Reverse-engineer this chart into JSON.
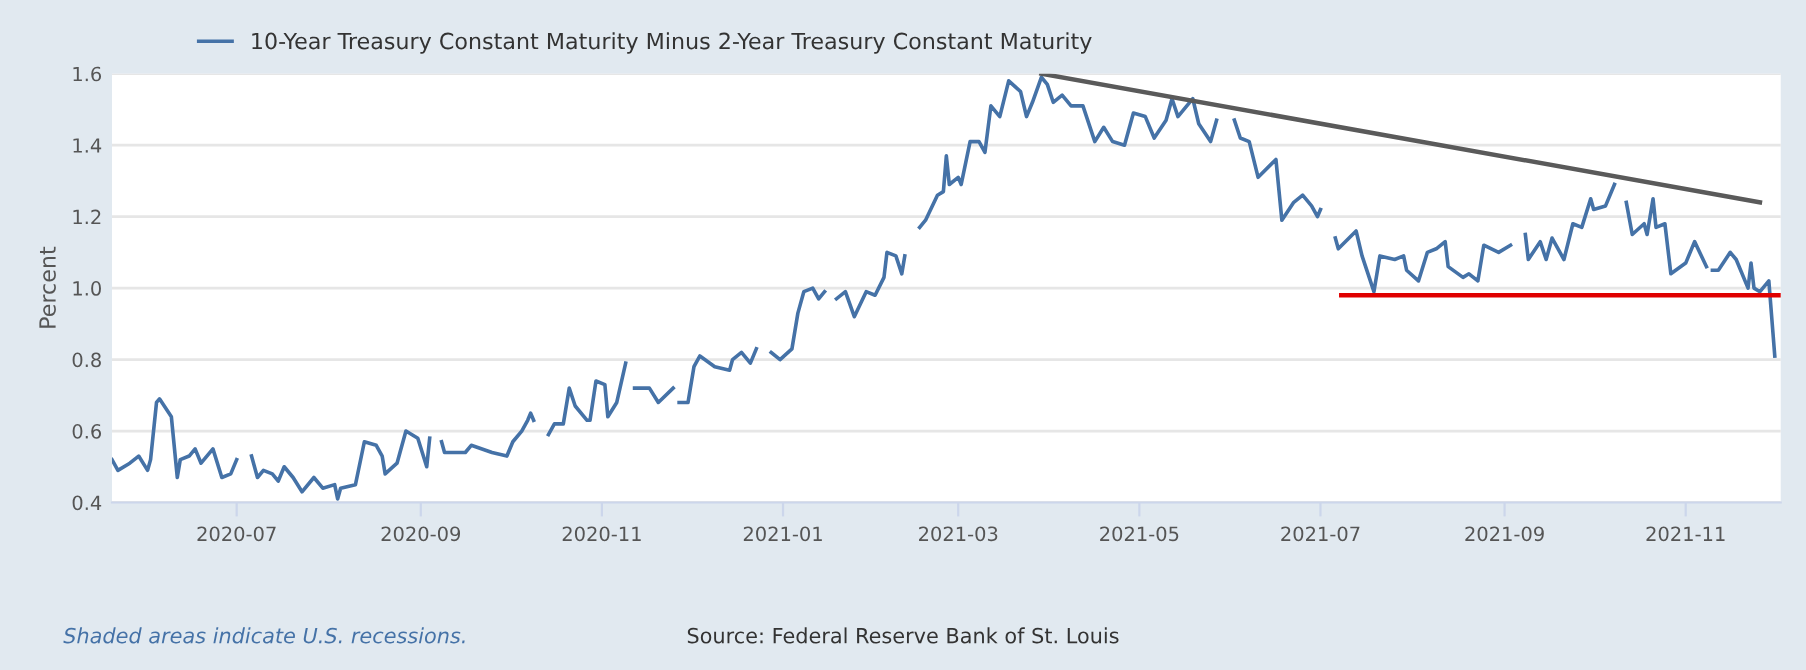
{
  "chart_data": {
    "type": "line",
    "ylabel": "Percent",
    "xlim": [
      "2020-05-20",
      "2021-12-03"
    ],
    "xticks": [
      {
        "value": "2020-07-01",
        "label": "2020-07"
      },
      {
        "value": "2020-09-01",
        "label": "2020-09"
      },
      {
        "value": "2020-11-01",
        "label": "2020-11"
      },
      {
        "value": "2021-01-01",
        "label": "2021-01"
      },
      {
        "value": "2021-03-01",
        "label": "2021-03"
      },
      {
        "value": "2021-05-01",
        "label": "2021-05"
      },
      {
        "value": "2021-07-01",
        "label": "2021-07"
      },
      {
        "value": "2021-09-01",
        "label": "2021-09"
      },
      {
        "value": "2021-11-01",
        "label": "2021-11"
      }
    ],
    "ylim": [
      0.4,
      1.6
    ],
    "yticks": [
      0.4,
      0.6,
      0.8,
      {
        "value": 1,
        "label": "1.0"
      },
      1.2,
      1.4,
      1.6
    ],
    "grid": "y",
    "legend": "top left",
    "annotations": [
      "Shaded areas indicate U.S. recessions.",
      "Source: Federal Reserve Bank of St. Louis"
    ],
    "series": [
      {
        "name": "10-Year Treasury Constant Maturity Minus 2-Year Treasury Constant Maturity",
        "color": "#4572a7",
        "x": [
          "2020-05-20",
          "2020-05-22",
          "2020-05-26",
          "2020-05-29",
          "2020-06-01",
          "2020-06-02",
          "2020-06-04",
          "2020-06-05",
          "2020-06-09",
          "2020-06-11",
          "2020-06-12",
          "2020-06-15",
          "2020-06-17",
          "2020-06-19",
          "2020-06-23",
          "2020-06-26",
          "2020-06-29",
          "2020-07-01",
          "2020-07-03",
          "2020-07-06",
          "2020-07-08",
          "2020-07-10",
          "2020-07-13",
          "2020-07-15",
          "2020-07-17",
          "2020-07-20",
          "2020-07-23",
          "2020-07-27",
          "2020-07-30",
          "2020-08-03",
          "2020-08-04",
          "2020-08-05",
          "2020-08-10",
          "2020-08-13",
          "2020-08-17",
          "2020-08-19",
          "2020-08-20",
          "2020-08-24",
          "2020-08-25",
          "2020-08-27",
          "2020-08-31",
          "2020-09-03",
          "2020-09-04",
          "2020-09-07",
          "2020-09-08",
          "2020-09-09",
          "2020-09-16",
          "2020-09-18",
          "2020-09-25",
          "2020-09-30",
          "2020-10-02",
          "2020-10-05",
          "2020-10-07",
          "2020-10-08",
          "2020-10-09",
          "2020-10-12",
          "2020-10-14",
          "2020-10-16",
          "2020-10-19",
          "2020-10-21",
          "2020-10-23",
          "2020-10-27",
          "2020-10-28",
          "2020-10-30",
          "2020-11-02",
          "2020-11-03",
          "2020-11-06",
          "2020-11-09",
          "2020-11-11",
          "2020-11-12",
          "2020-11-17",
          "2020-11-20",
          "2020-11-25",
          "2020-11-26",
          "2020-11-27",
          "2020-11-30",
          "2020-12-02",
          "2020-12-04",
          "2020-12-09",
          "2020-12-14",
          "2020-12-15",
          "2020-12-18",
          "2020-12-21",
          "2020-12-23",
          "2020-12-25",
          "2020-12-28",
          "2020-12-31",
          "2021-01-04",
          "2021-01-06",
          "2021-01-08",
          "2021-01-11",
          "2021-01-13",
          "2021-01-15",
          "2021-01-18",
          "2021-01-19",
          "2021-01-22",
          "2021-01-25",
          "2021-01-29",
          "2021-02-01",
          "2021-02-04",
          "2021-02-05",
          "2021-02-08",
          "2021-02-10",
          "2021-02-11",
          "2021-02-15",
          "2021-02-16",
          "2021-02-18",
          "2021-02-22",
          "2021-02-24",
          "2021-02-25",
          "2021-02-26",
          "2021-03-01",
          "2021-03-02",
          "2021-03-05",
          "2021-03-08",
          "2021-03-10",
          "2021-03-12",
          "2021-03-15",
          "2021-03-18",
          "2021-03-22",
          "2021-03-24",
          "2021-03-26",
          "2021-03-29",
          "2021-03-31",
          "2021-04-02",
          "2021-04-05",
          "2021-04-08",
          "2021-04-12",
          "2021-04-16",
          "2021-04-19",
          "2021-04-22",
          "2021-04-26",
          "2021-04-29",
          "2021-05-03",
          "2021-05-06",
          "2021-05-10",
          "2021-05-12",
          "2021-05-14",
          "2021-05-19",
          "2021-05-21",
          "2021-05-25",
          "2021-05-27",
          "2021-05-31",
          "2021-06-02",
          "2021-06-04",
          "2021-06-07",
          "2021-06-10",
          "2021-06-16",
          "2021-06-18",
          "2021-06-22",
          "2021-06-25",
          "2021-06-28",
          "2021-06-30",
          "2021-07-01",
          "2021-07-05",
          "2021-07-06",
          "2021-07-07",
          "2021-07-13",
          "2021-07-15",
          "2021-07-19",
          "2021-07-21",
          "2021-07-26",
          "2021-07-29",
          "2021-07-30",
          "2021-08-03",
          "2021-08-06",
          "2021-08-09",
          "2021-08-12",
          "2021-08-13",
          "2021-08-18",
          "2021-08-20",
          "2021-08-23",
          "2021-08-25",
          "2021-08-30",
          "2021-09-03",
          "2021-09-06",
          "2021-09-08",
          "2021-09-09",
          "2021-09-13",
          "2021-09-15",
          "2021-09-17",
          "2021-09-21",
          "2021-09-24",
          "2021-09-27",
          "2021-09-30",
          "2021-10-01",
          "2021-10-05",
          "2021-10-08",
          "2021-10-11",
          "2021-10-12",
          "2021-10-14",
          "2021-10-18",
          "2021-10-19",
          "2021-10-21",
          "2021-10-22",
          "2021-10-25",
          "2021-10-27",
          "2021-11-01",
          "2021-11-04",
          "2021-11-08",
          "2021-11-09",
          "2021-11-10",
          "2021-11-12",
          "2021-11-16",
          "2021-11-18",
          "2021-11-22",
          "2021-11-23",
          "2021-11-24",
          "2021-11-26",
          "2021-11-29",
          "2021-12-01"
        ],
        "values": [
          0.52,
          0.49,
          0.51,
          0.53,
          0.49,
          0.52,
          0.68,
          0.69,
          0.64,
          0.47,
          0.52,
          0.53,
          0.55,
          0.51,
          0.55,
          0.47,
          0.48,
          0.52,
          null,
          0.53,
          0.47,
          0.49,
          0.48,
          0.46,
          0.5,
          0.47,
          0.43,
          0.47,
          0.44,
          0.45,
          0.41,
          0.44,
          0.45,
          0.57,
          0.56,
          0.53,
          0.48,
          0.51,
          0.54,
          0.6,
          0.58,
          0.5,
          0.58,
          null,
          0.57,
          0.54,
          0.54,
          0.56,
          0.54,
          0.53,
          0.57,
          0.6,
          0.63,
          0.65,
          0.63,
          null,
          0.59,
          0.62,
          0.62,
          0.72,
          0.67,
          0.63,
          0.63,
          0.74,
          0.73,
          0.64,
          0.68,
          0.79,
          null,
          0.72,
          0.72,
          0.68,
          0.72,
          null,
          0.68,
          0.68,
          0.78,
          0.81,
          0.78,
          0.77,
          0.8,
          0.82,
          0.79,
          0.83,
          null,
          0.82,
          0.8,
          0.83,
          0.93,
          0.99,
          1.0,
          0.97,
          0.99,
          null,
          0.97,
          0.99,
          0.92,
          0.99,
          0.98,
          1.03,
          1.1,
          1.09,
          1.04,
          1.09,
          null,
          1.17,
          1.19,
          1.26,
          1.27,
          1.37,
          1.29,
          1.31,
          1.29,
          1.41,
          1.41,
          1.38,
          1.51,
          1.48,
          1.58,
          1.55,
          1.48,
          1.52,
          1.59,
          1.57,
          1.52,
          1.54,
          1.51,
          1.51,
          1.41,
          1.45,
          1.41,
          1.4,
          1.49,
          1.48,
          1.42,
          1.47,
          1.53,
          1.48,
          1.53,
          1.46,
          1.41,
          1.47,
          null,
          1.47,
          1.42,
          1.41,
          1.31,
          1.36,
          1.19,
          1.24,
          1.26,
          1.23,
          1.2,
          1.22,
          null,
          1.14,
          1.11,
          1.16,
          1.09,
          0.99,
          1.09,
          1.08,
          1.09,
          1.05,
          1.02,
          1.1,
          1.11,
          1.13,
          1.06,
          1.03,
          1.04,
          1.02,
          1.12,
          1.1,
          1.12,
          null,
          1.15,
          1.08,
          1.13,
          1.08,
          1.14,
          1.08,
          1.18,
          1.17,
          1.25,
          1.22,
          1.23,
          1.29,
          null,
          1.24,
          1.15,
          1.18,
          1.15,
          1.25,
          1.17,
          1.18,
          1.04,
          1.07,
          1.13,
          1.06,
          null,
          1.05,
          1.05,
          1.1,
          1.08,
          1.0,
          1.07,
          1.0,
          0.99,
          1.02,
          0.81
        ]
      },
      {
        "color": "#5a5a5a",
        "x": [
          "2021-03-29",
          "2021-11-26"
        ],
        "values": [
          1.6,
          1.24
        ]
      },
      {
        "color": "#e00000",
        "x": [
          "2021-07-08",
          "2021-12-03"
        ],
        "values": [
          0.98,
          0.98
        ]
      }
    ]
  }
}
